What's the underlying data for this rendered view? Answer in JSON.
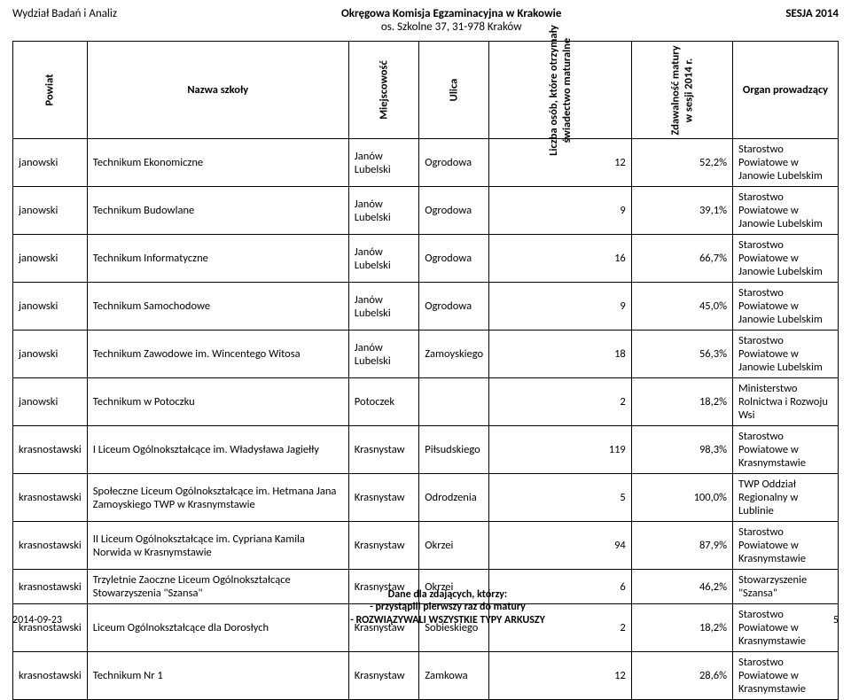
{
  "header": {
    "left": "Wydział Badań i Analiz",
    "center_line1": "Okręgowa Komisja Egzaminacyjna w Krakowie",
    "center_line2": "os. Szkolne 37, 31-978 Kraków",
    "right": "SESJA  2014"
  },
  "columns": {
    "powiat": "Powiat",
    "nazwa": "Nazwa szkoły",
    "miejscowosc": "Miejscowość",
    "ulica": "Ulica",
    "liczba_line1": "Liczba osób, które otrzymały",
    "liczba_line2": "świadectwo maturalne",
    "zdawalnosc_line1": "Zdawalność matury",
    "zdawalnosc_line2": "w sesji 2014 r.",
    "organ": "Organ prowadzący"
  },
  "rows": [
    {
      "powiat": "janowski",
      "nazwa": "Technikum Ekonomiczne",
      "miej": "Janów Lubelski",
      "ulica": "Ogrodowa",
      "liczba": "12",
      "zdaw": "52,2%",
      "organ": "Starostwo Powiatowe w Janowie Lubelskim"
    },
    {
      "powiat": "janowski",
      "nazwa": "Technikum Budowlane",
      "miej": "Janów Lubelski",
      "ulica": "Ogrodowa",
      "liczba": "9",
      "zdaw": "39,1%",
      "organ": "Starostwo Powiatowe w Janowie Lubelskim"
    },
    {
      "powiat": "janowski",
      "nazwa": "Technikum Informatyczne",
      "miej": "Janów Lubelski",
      "ulica": "Ogrodowa",
      "liczba": "16",
      "zdaw": "66,7%",
      "organ": "Starostwo Powiatowe w Janowie Lubelskim"
    },
    {
      "powiat": "janowski",
      "nazwa": "Technikum Samochodowe",
      "miej": "Janów Lubelski",
      "ulica": "Ogrodowa",
      "liczba": "9",
      "zdaw": "45,0%",
      "organ": "Starostwo Powiatowe w Janowie Lubelskim"
    },
    {
      "powiat": "janowski",
      "nazwa": "Technikum Zawodowe im. Wincentego Witosa",
      "miej": "Janów Lubelski",
      "ulica": "Zamoyskiego",
      "liczba": "18",
      "zdaw": "56,3%",
      "organ": "Starostwo Powiatowe w Janowie Lubelskim"
    },
    {
      "powiat": "janowski",
      "nazwa": "Technikum w Potoczku",
      "miej": "Potoczek",
      "ulica": "",
      "liczba": "2",
      "zdaw": "18,2%",
      "organ": "Ministerstwo Rolnictwa i Rozwoju Wsi"
    },
    {
      "powiat": "krasnostawski",
      "nazwa": "I Liceum Ogólnokształcące im. Władysława Jagiełły",
      "miej": "Krasnystaw",
      "ulica": "Piłsudskiego",
      "liczba": "119",
      "zdaw": "98,3%",
      "organ": "Starostwo Powiatowe w Krasnymstawie"
    },
    {
      "powiat": "krasnostawski",
      "nazwa": "Społeczne Liceum Ogólnokształcące im. Hetmana Jana Zamoyskiego TWP w Krasnymstawie",
      "miej": "Krasnystaw",
      "ulica": "Odrodzenia",
      "liczba": "5",
      "zdaw": "100,0%",
      "organ": "TWP Oddział Regionalny w Lublinie"
    },
    {
      "powiat": "krasnostawski",
      "nazwa": "II Liceum Ogólnokształcące im. Cypriana Kamila Norwida w Krasnymstawie",
      "miej": "Krasnystaw",
      "ulica": "Okrzei",
      "liczba": "94",
      "zdaw": "87,9%",
      "organ": "Starostwo Powiatowe w Krasnymstawie"
    },
    {
      "powiat": "krasnostawski",
      "nazwa": "Trzyletnie Zaoczne Liceum Ogólnokształcące Stowarzyszenia \"Szansa\"",
      "miej": "Krasnystaw",
      "ulica": "Okrzei",
      "liczba": "6",
      "zdaw": "46,2%",
      "organ": "Stowarzyszenie \"Szansa\""
    },
    {
      "powiat": "krasnostawski",
      "nazwa": "Liceum Ogólnokształcące dla Dorosłych",
      "miej": "Krasnystaw",
      "ulica": "Sobieskiego",
      "liczba": "2",
      "zdaw": "18,2%",
      "organ": "Starostwo Powiatowe w Krasnymstawie"
    },
    {
      "powiat": "krasnostawski",
      "nazwa": "Technikum Nr 1",
      "miej": "Krasnystaw",
      "ulica": "Zamkowa",
      "liczba": "12",
      "zdaw": "28,6%",
      "organ": "Starostwo Powiatowe w Krasnymstawie"
    }
  ],
  "footer": {
    "date": "2014-09-23",
    "line1": "Dane dla zdających, którzy:",
    "line2": "- przystąpili pierwszy raz do matury",
    "line3": "- ROZWIĄZYWALI WSZYSTKIE TYPY ARKUSZY",
    "page": "5"
  }
}
